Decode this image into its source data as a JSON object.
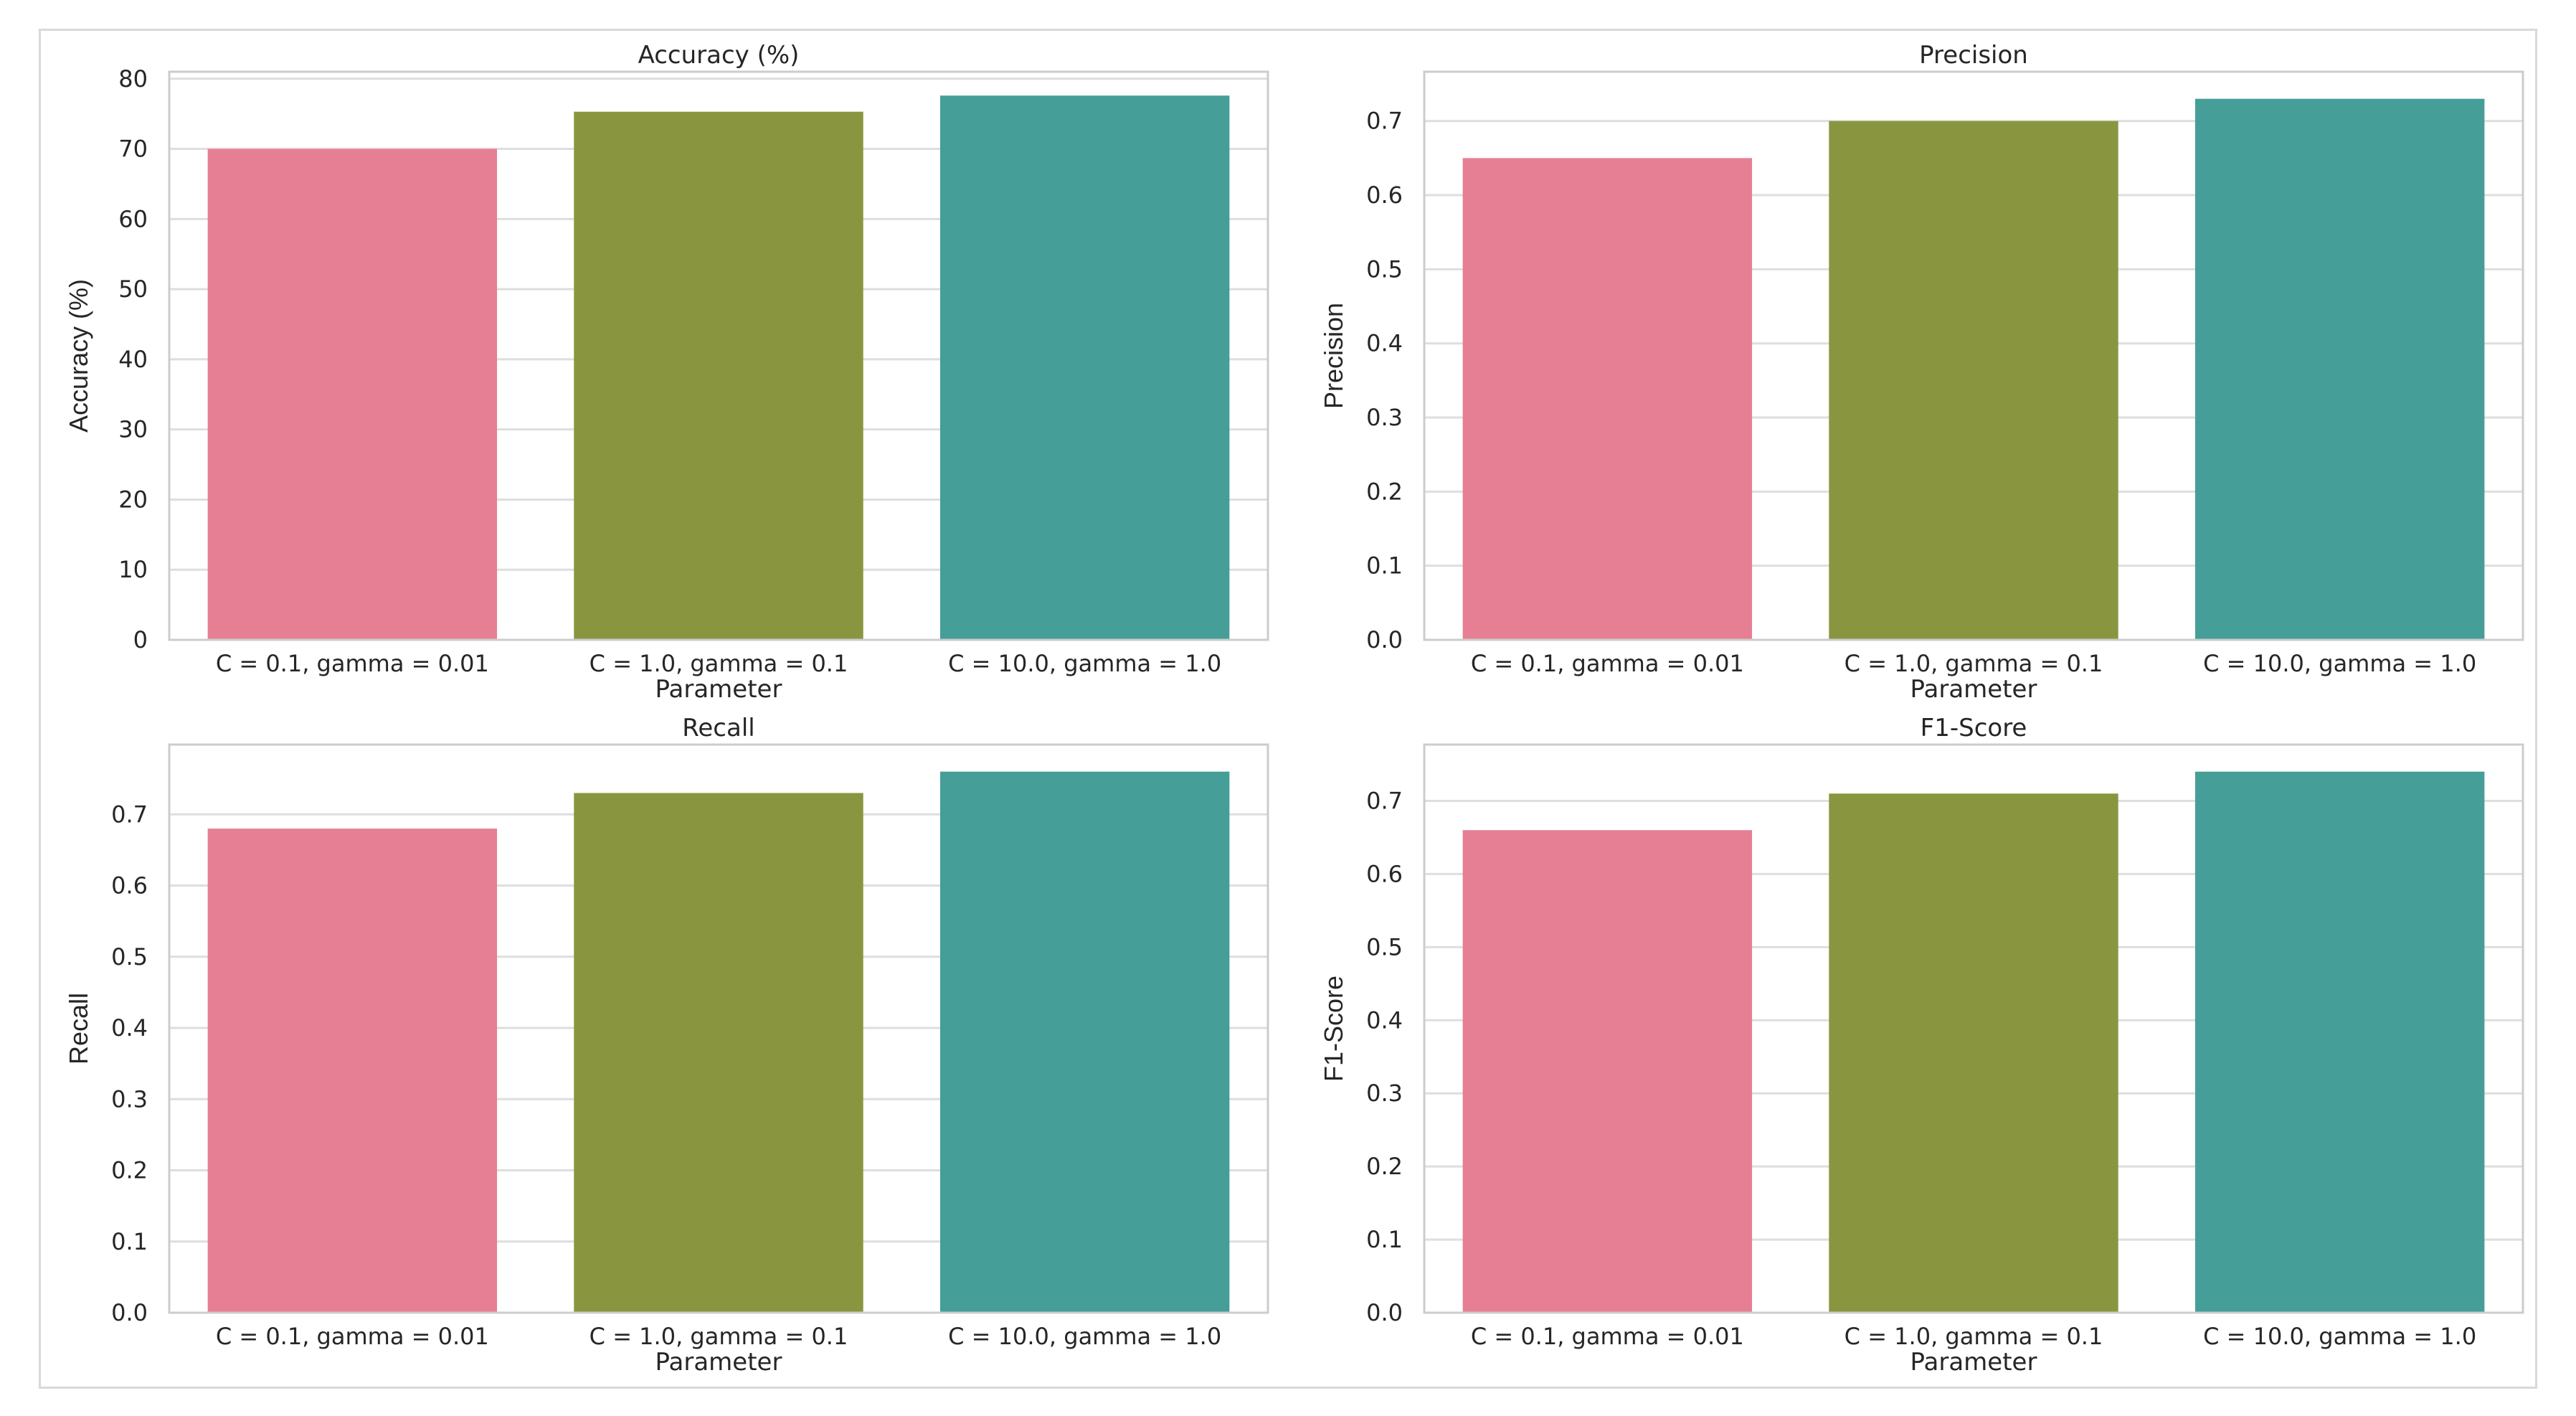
{
  "chart_data": [
    {
      "type": "bar",
      "title": "Accuracy (%)",
      "xlabel": "Parameter",
      "ylabel": "Accuracy (%)",
      "categories": [
        "C = 0.1, gamma = 0.01",
        "C = 1.0, gamma = 0.1",
        "C = 10.0, gamma = 1.0"
      ],
      "values": [
        70.0,
        75.3,
        77.6
      ],
      "ylim": [
        0,
        81
      ],
      "yticks": [
        0,
        10,
        20,
        30,
        40,
        50,
        60,
        70,
        80
      ],
      "tick_decimals": 0,
      "grid": true,
      "colors": [
        "#e67f93",
        "#8a963f",
        "#459e98"
      ]
    },
    {
      "type": "bar",
      "title": "Precision",
      "xlabel": "Parameter",
      "ylabel": "Precision",
      "categories": [
        "C = 0.1, gamma = 0.01",
        "C = 1.0, gamma = 0.1",
        "C = 10.0, gamma = 1.0"
      ],
      "values": [
        0.65,
        0.7,
        0.73
      ],
      "ylim": [
        0,
        0.7665
      ],
      "yticks": [
        0.0,
        0.1,
        0.2,
        0.3,
        0.4,
        0.5,
        0.6,
        0.7
      ],
      "tick_decimals": 1,
      "grid": true,
      "colors": [
        "#e67f93",
        "#8a963f",
        "#459e98"
      ]
    },
    {
      "type": "bar",
      "title": "Recall",
      "xlabel": "Parameter",
      "ylabel": "Recall",
      "categories": [
        "C = 0.1, gamma = 0.01",
        "C = 1.0, gamma = 0.1",
        "C = 10.0, gamma = 1.0"
      ],
      "values": [
        0.68,
        0.73,
        0.76
      ],
      "ylim": [
        0,
        0.798
      ],
      "yticks": [
        0.0,
        0.1,
        0.2,
        0.3,
        0.4,
        0.5,
        0.6,
        0.7
      ],
      "tick_decimals": 1,
      "grid": true,
      "colors": [
        "#e67f93",
        "#8a963f",
        "#459e98"
      ]
    },
    {
      "type": "bar",
      "title": "F1-Score",
      "xlabel": "Parameter",
      "ylabel": "F1-Score",
      "categories": [
        "C = 0.1, gamma = 0.01",
        "C = 1.0, gamma = 0.1",
        "C = 10.0, gamma = 1.0"
      ],
      "values": [
        0.66,
        0.71,
        0.74
      ],
      "ylim": [
        0,
        0.777
      ],
      "yticks": [
        0.0,
        0.1,
        0.2,
        0.3,
        0.4,
        0.5,
        0.6,
        0.7
      ],
      "tick_decimals": 1,
      "grid": true,
      "colors": [
        "#e67f93",
        "#8a963f",
        "#459e98"
      ]
    }
  ]
}
